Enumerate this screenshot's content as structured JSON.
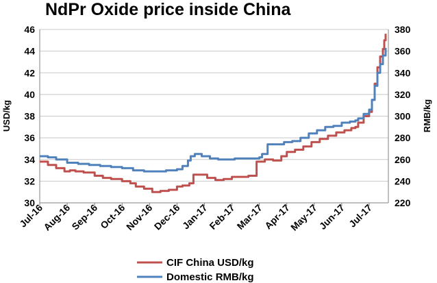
{
  "chart_data": {
    "type": "line",
    "title": "NdPr Oxide price inside China",
    "ylabel_left": "USD/kg",
    "ylabel_right": "RMB/kg",
    "ylim_left": [
      30,
      46
    ],
    "ylim_right": [
      220,
      380
    ],
    "yticks_left": [
      "30",
      "32",
      "34",
      "36",
      "38",
      "40",
      "42",
      "44",
      "46"
    ],
    "yticks_right": [
      "220",
      "240",
      "260",
      "280",
      "300",
      "320",
      "340",
      "360",
      "380"
    ],
    "xtick_labels": [
      "Jul-16",
      "Aug-16",
      "Sep-16",
      "Oct-16",
      "Nov-16",
      "Dec-16",
      "Jan-17",
      "Feb-17",
      "Mar-17",
      "Apr-17",
      "May-17",
      "Jun-17",
      "Jul-17"
    ],
    "xlim_months": [
      0,
      12.7
    ],
    "series": [
      {
        "name": "CIF China USD/kg",
        "axis": "left",
        "color": "#c0504d",
        "x": [
          0,
          0.3,
          0.6,
          0.9,
          1.1,
          1.3,
          1.6,
          2.0,
          2.3,
          2.6,
          3.0,
          3.3,
          3.5,
          3.8,
          4.1,
          4.4,
          4.7,
          5.0,
          5.2,
          5.45,
          5.6,
          5.8,
          6.1,
          6.4,
          6.7,
          7.0,
          7.3,
          7.6,
          7.9,
          8.2,
          8.5,
          8.8,
          9.0,
          9.3,
          9.6,
          9.9,
          10.2,
          10.5,
          10.8,
          11.1,
          11.35,
          11.5,
          11.6,
          11.8,
          12.0,
          12.1,
          12.2,
          12.3,
          12.4,
          12.5,
          12.55,
          12.6
        ],
        "values": [
          33.8,
          33.5,
          33.2,
          32.9,
          33.0,
          32.9,
          32.8,
          32.5,
          32.3,
          32.2,
          32.0,
          31.8,
          31.5,
          31.3,
          31.0,
          31.1,
          31.2,
          31.5,
          31.6,
          31.8,
          32.6,
          32.6,
          32.3,
          32.1,
          32.2,
          32.4,
          32.4,
          32.5,
          33.8,
          34.0,
          33.9,
          34.3,
          34.7,
          34.9,
          35.2,
          35.6,
          35.9,
          36.2,
          36.5,
          36.7,
          36.9,
          37.0,
          37.4,
          38.0,
          38.4,
          39.5,
          41.0,
          42.5,
          43.5,
          44.2,
          45.0,
          45.6
        ]
      },
      {
        "name": "Domestic RMB/kg",
        "axis": "right",
        "color": "#4f81bd",
        "x": [
          0,
          0.3,
          0.6,
          1.0,
          1.4,
          1.8,
          2.2,
          2.6,
          3.0,
          3.4,
          3.8,
          4.2,
          4.6,
          5.0,
          5.2,
          5.4,
          5.5,
          5.65,
          5.9,
          6.2,
          6.5,
          6.8,
          7.1,
          7.4,
          7.7,
          8.0,
          8.1,
          8.3,
          8.6,
          8.9,
          9.2,
          9.5,
          9.8,
          10.1,
          10.4,
          10.7,
          11.0,
          11.3,
          11.5,
          11.6,
          11.8,
          12.0,
          12.1,
          12.2,
          12.3,
          12.4,
          12.5,
          12.6
        ],
        "values": [
          263,
          262,
          260,
          257,
          256,
          255,
          254,
          253,
          252,
          250,
          249,
          249,
          250,
          251,
          254,
          259,
          263,
          265,
          263,
          261,
          260,
          260,
          261,
          261,
          261,
          262,
          265,
          274,
          274,
          276,
          277,
          280,
          284,
          287,
          290,
          291,
          294,
          295,
          296,
          298,
          302,
          306,
          315,
          328,
          340,
          348,
          356,
          363
        ]
      }
    ],
    "legend_position": "bottom",
    "grid": true
  }
}
